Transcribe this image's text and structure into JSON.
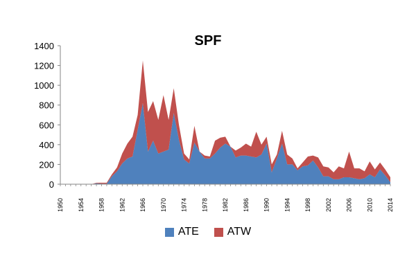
{
  "chart_data": {
    "type": "area",
    "stacked": true,
    "title": "SPF",
    "xlabel": "",
    "ylabel": "",
    "xlim": [
      1950,
      2014
    ],
    "ylim": [
      0,
      1400
    ],
    "yticks": [
      0,
      200,
      400,
      600,
      800,
      1000,
      1200,
      1400
    ],
    "xticks": [
      1950,
      1954,
      1958,
      1962,
      1966,
      1970,
      1974,
      1978,
      1982,
      1986,
      1990,
      1994,
      1998,
      2002,
      2006,
      2010,
      2014
    ],
    "grid": false,
    "legend": "bottom",
    "x": [
      1950,
      1951,
      1952,
      1953,
      1954,
      1955,
      1956,
      1957,
      1958,
      1959,
      1960,
      1961,
      1962,
      1963,
      1964,
      1965,
      1966,
      1967,
      1968,
      1969,
      1970,
      1971,
      1972,
      1973,
      1974,
      1975,
      1976,
      1977,
      1978,
      1979,
      1980,
      1981,
      1982,
      1983,
      1984,
      1985,
      1986,
      1987,
      1988,
      1989,
      1990,
      1991,
      1992,
      1993,
      1994,
      1995,
      1996,
      1997,
      1998,
      1999,
      2000,
      2001,
      2002,
      2003,
      2004,
      2005,
      2006,
      2007,
      2008,
      2009,
      2010,
      2011,
      2012,
      2013,
      2014
    ],
    "series": [
      {
        "name": "ATE",
        "color": "#4f81bd",
        "values": [
          0,
          0,
          0,
          0,
          0,
          0,
          0,
          10,
          5,
          5,
          80,
          130,
          210,
          260,
          280,
          550,
          820,
          330,
          440,
          310,
          330,
          350,
          720,
          450,
          250,
          210,
          420,
          330,
          260,
          260,
          310,
          370,
          410,
          380,
          270,
          290,
          290,
          280,
          270,
          300,
          410,
          120,
          260,
          410,
          200,
          200,
          140,
          180,
          190,
          240,
          170,
          80,
          80,
          50,
          50,
          70,
          70,
          60,
          50,
          60,
          100,
          70,
          150,
          90,
          20
        ]
      },
      {
        "name": "ATW",
        "color": "#c0504d",
        "values": [
          0,
          0,
          0,
          0,
          0,
          0,
          0,
          5,
          10,
          10,
          20,
          40,
          100,
          150,
          200,
          150,
          430,
          400,
          400,
          340,
          570,
          300,
          250,
          150,
          60,
          40,
          170,
          0,
          30,
          20,
          130,
          100,
          70,
          0,
          70,
          80,
          120,
          100,
          260,
          100,
          70,
          80,
          40,
          130,
          100,
          60,
          20,
          40,
          90,
          50,
          100,
          100,
          90,
          70,
          130,
          90,
          260,
          100,
          110,
          70,
          130,
          80,
          70,
          60,
          50
        ]
      }
    ]
  }
}
